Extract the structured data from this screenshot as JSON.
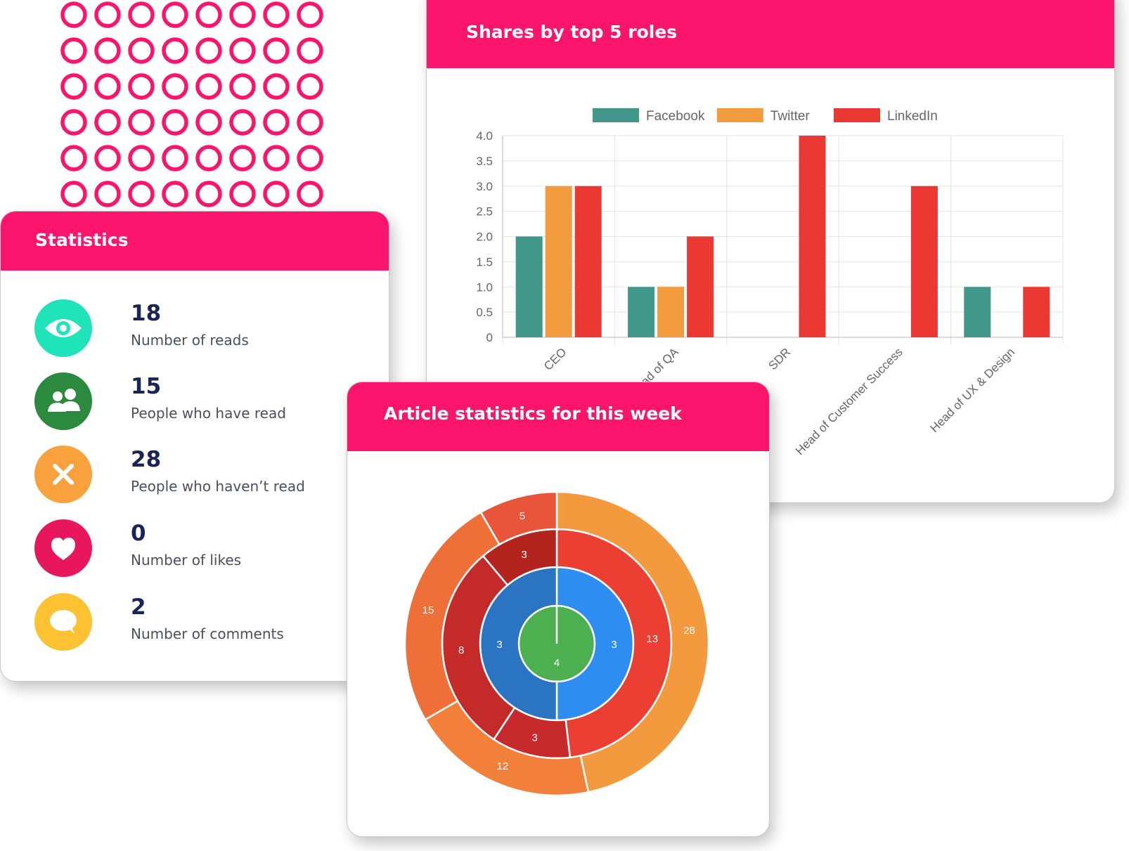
{
  "stats_card": {
    "title": "Statistics",
    "items": [
      {
        "value": "18",
        "label": "Number of reads",
        "icon": "eye-icon",
        "color": "#1fe3b9"
      },
      {
        "value": "15",
        "label": "People who have read",
        "icon": "users-icon",
        "color": "#2b8a3e"
      },
      {
        "value": "28",
        "label": "People who haven’t read",
        "icon": "close-icon",
        "color": "#f9a13d"
      },
      {
        "value": "0",
        "label": "Number of likes",
        "icon": "heart-icon",
        "color": "#e8175d"
      },
      {
        "value": "2",
        "label": "Number of comments",
        "icon": "comment-icon",
        "color": "#fec132"
      }
    ]
  },
  "shares_card": {
    "title": "Shares by top 5 roles"
  },
  "article_card": {
    "title": "Article statistics for this week"
  },
  "colors": {
    "brand_pink": "#fb146c",
    "facebook": "#41978a",
    "twitter": "#f39c3e",
    "linkedin": "#ec3833",
    "decor_ring": "#fb146c"
  },
  "chart_data": [
    {
      "type": "bar",
      "title": "Shares by top 5 roles",
      "categories": [
        "CEO",
        "Head of QA",
        "SDR",
        "Head of Customer Success",
        "Head of UX & Design"
      ],
      "series": [
        {
          "name": "Facebook",
          "color": "#41978a",
          "values": [
            2,
            1,
            0,
            0,
            1
          ]
        },
        {
          "name": "Twitter",
          "color": "#f39c3e",
          "values": [
            3,
            1,
            0,
            0,
            0
          ]
        },
        {
          "name": "LinkedIn",
          "color": "#ec3833",
          "values": [
            3,
            2,
            4,
            3,
            1
          ]
        }
      ],
      "yticks": [
        "0",
        "0.5",
        "1.0",
        "1.5",
        "2.0",
        "2.5",
        "3.0",
        "3.5",
        "4.0"
      ],
      "ylim": [
        0,
        4
      ],
      "legend": "top",
      "grid": true
    },
    {
      "type": "sunburst",
      "title": "Article statistics for this week",
      "rings": [
        {
          "level": 1,
          "segments": [
            {
              "value": 4,
              "color": "#4caf50"
            }
          ]
        },
        {
          "level": 2,
          "segments": [
            {
              "value": 3,
              "color": "#2e8df0"
            },
            {
              "value": 3,
              "color": "#2a74c2"
            }
          ]
        },
        {
          "level": 3,
          "segments": [
            {
              "value": 13,
              "color": "#ec3f33"
            },
            {
              "value": 3,
              "color": "#c62a2a"
            },
            {
              "value": 8,
              "color": "#c42a2a"
            },
            {
              "value": 3,
              "color": "#b3241f"
            }
          ]
        },
        {
          "level": 4,
          "segments": [
            {
              "value": 28,
              "color": "#f39a3f"
            },
            {
              "value": 12,
              "color": "#f2803a"
            },
            {
              "value": 15,
              "color": "#ee7038"
            },
            {
              "value": 5,
              "color": "#e9553a"
            }
          ]
        }
      ]
    }
  ]
}
